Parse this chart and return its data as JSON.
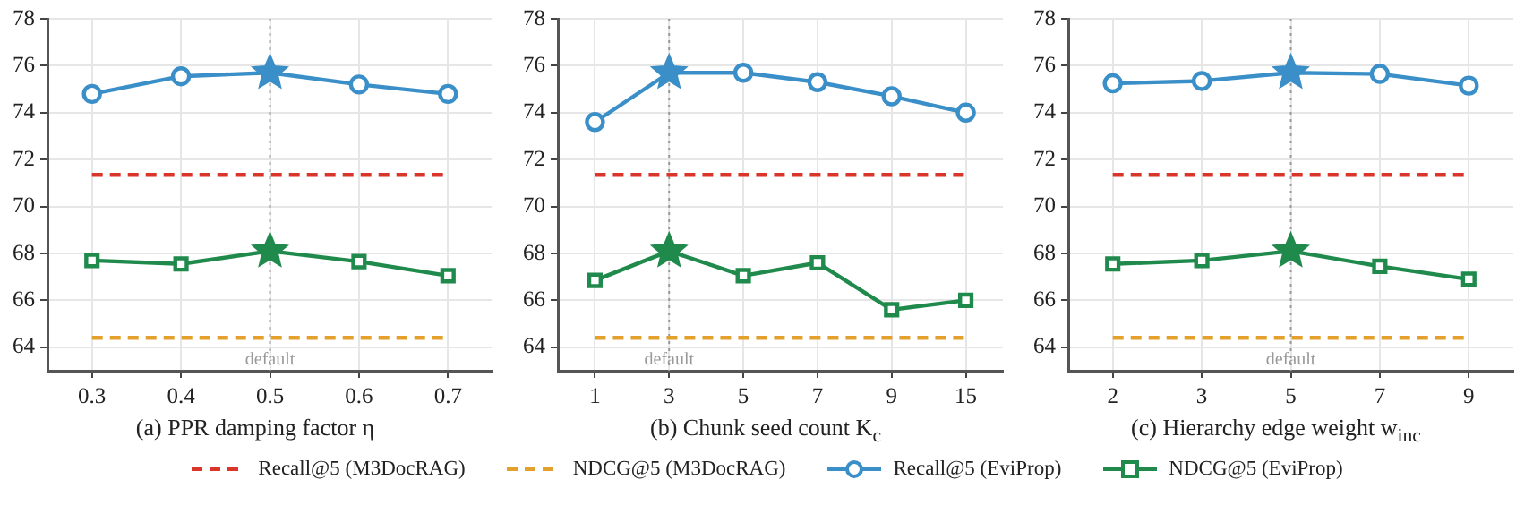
{
  "chart_data": [
    {
      "type": "line",
      "xlabel": "(a) PPR damping factor η",
      "categories": [
        "0.3",
        "0.4",
        "0.5",
        "0.6",
        "0.7"
      ],
      "ylim": [
        63,
        78
      ],
      "yticks": [
        64,
        66,
        68,
        70,
        72,
        74,
        76,
        78
      ],
      "grid": true,
      "ref_lines": [
        {
          "axis": "x",
          "value": "0.5",
          "label": "default",
          "color": "#999999",
          "line_style": "dotted"
        }
      ],
      "series": [
        {
          "type": "line",
          "color": "#d9352b",
          "values": [
            71.35,
            71.35,
            71.35,
            71.35,
            71.35
          ],
          "line_style": "dashed",
          "marker": "none"
        },
        {
          "type": "line",
          "color": "#e3a02c",
          "values": [
            64.4,
            64.4,
            64.4,
            64.4,
            64.4
          ],
          "line_style": "dashed",
          "marker": "none"
        },
        {
          "type": "line",
          "color": "#3a8fc8",
          "values": [
            74.8,
            75.55,
            75.7,
            75.2,
            74.8
          ],
          "marker": "circle"
        },
        {
          "type": "line",
          "color": "#1f8a4c",
          "values": [
            67.7,
            67.55,
            68.1,
            67.65,
            67.05
          ],
          "marker": "square"
        },
        {
          "type": "scatter",
          "color": "#3a8fc8",
          "x": [
            "0.5"
          ],
          "values": [
            75.7
          ],
          "marker": "star"
        },
        {
          "type": "scatter",
          "color": "#1f8a4c",
          "x": [
            "0.5"
          ],
          "values": [
            68.1
          ],
          "marker": "star"
        }
      ]
    },
    {
      "type": "line",
      "xlabel": "(b) Chunk seed count K$_{c}$",
      "categories": [
        "1",
        "3",
        "5",
        "7",
        "9",
        "15"
      ],
      "ylim": [
        63,
        78
      ],
      "yticks": [
        64,
        66,
        68,
        70,
        72,
        74,
        76,
        78
      ],
      "grid": true,
      "legend": "bottom",
      "ref_lines": [
        {
          "axis": "x",
          "value": "3",
          "label": "default",
          "color": "#999999",
          "line_style": "dotted"
        }
      ],
      "series": [
        {
          "type": "line",
          "name": "Recall@5 (M3DocRAG)",
          "color": "#d9352b",
          "values": [
            71.35,
            71.35,
            71.35,
            71.35,
            71.35,
            71.35
          ],
          "line_style": "dashed",
          "marker": "none"
        },
        {
          "type": "line",
          "name": "NDCG@5 (M3DocRAG)",
          "color": "#e3a02c",
          "values": [
            64.4,
            64.4,
            64.4,
            64.4,
            64.4,
            64.4
          ],
          "line_style": "dashed",
          "marker": "none"
        },
        {
          "type": "line",
          "name": "Recall@5 (EviProp)",
          "color": "#3a8fc8",
          "values": [
            73.6,
            75.7,
            75.7,
            75.3,
            74.7,
            74.0
          ],
          "marker": "circle"
        },
        {
          "type": "line",
          "name": "NDCG@5 (EviProp)",
          "color": "#1f8a4c",
          "values": [
            66.85,
            68.1,
            67.05,
            67.6,
            65.6,
            66.0
          ],
          "marker": "square"
        },
        {
          "type": "scatter",
          "color": "#3a8fc8",
          "x": [
            "3"
          ],
          "values": [
            75.7
          ],
          "marker": "star"
        },
        {
          "type": "scatter",
          "color": "#1f8a4c",
          "x": [
            "3"
          ],
          "values": [
            68.1
          ],
          "marker": "star"
        }
      ]
    },
    {
      "type": "line",
      "xlabel": "(c) Hierarchy edge weight w$_{inc}$",
      "categories": [
        "2",
        "3",
        "5",
        "7",
        "9"
      ],
      "ylim": [
        63,
        78
      ],
      "yticks": [
        64,
        66,
        68,
        70,
        72,
        74,
        76,
        78
      ],
      "grid": true,
      "ref_lines": [
        {
          "axis": "x",
          "value": "5",
          "label": "default",
          "color": "#999999",
          "line_style": "dotted"
        }
      ],
      "series": [
        {
          "type": "line",
          "color": "#d9352b",
          "values": [
            71.35,
            71.35,
            71.35,
            71.35,
            71.35
          ],
          "line_style": "dashed",
          "marker": "none"
        },
        {
          "type": "line",
          "color": "#e3a02c",
          "values": [
            64.4,
            64.4,
            64.4,
            64.4,
            64.4
          ],
          "line_style": "dashed",
          "marker": "none"
        },
        {
          "type": "line",
          "color": "#3a8fc8",
          "values": [
            75.25,
            75.35,
            75.7,
            75.65,
            75.15
          ],
          "marker": "circle"
        },
        {
          "type": "line",
          "color": "#1f8a4c",
          "values": [
            67.55,
            67.7,
            68.1,
            67.45,
            66.9
          ],
          "marker": "square"
        },
        {
          "type": "scatter",
          "color": "#3a8fc8",
          "x": [
            "5"
          ],
          "values": [
            75.7
          ],
          "marker": "star"
        },
        {
          "type": "scatter",
          "color": "#1f8a4c",
          "x": [
            "5"
          ],
          "values": [
            68.1
          ],
          "marker": "star"
        }
      ]
    }
  ]
}
